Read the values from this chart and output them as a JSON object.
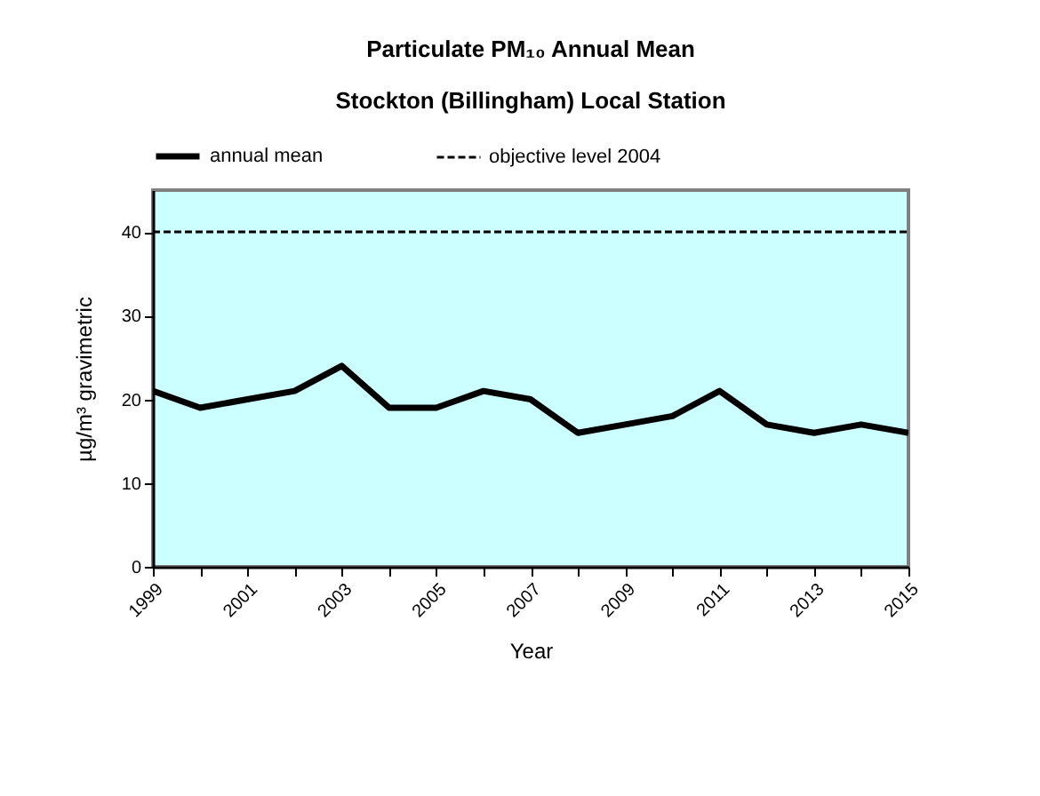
{
  "chart_data": {
    "type": "line",
    "title": "Particulate PM₁₀ Annual Mean",
    "subtitle": "Stockton (Billingham) Local Station",
    "xlabel": "Year",
    "ylabel": "µg/m³ gravimetric",
    "x": [
      1999,
      2000,
      2001,
      2002,
      2003,
      2004,
      2005,
      2006,
      2007,
      2008,
      2009,
      2010,
      2011,
      2012,
      2013,
      2014,
      2015
    ],
    "series": [
      {
        "name": "annual mean",
        "color": "#000000",
        "line_style": "solid",
        "values": [
          21,
          19,
          20,
          21,
          24,
          19,
          19,
          21,
          20,
          16,
          17,
          18,
          21,
          17,
          16,
          17,
          16
        ]
      },
      {
        "name": "objective level 2004",
        "color": "#000000",
        "line_style": "dashed",
        "values": [
          40,
          40,
          40,
          40,
          40,
          40,
          40,
          40,
          40,
          40,
          40,
          40,
          40,
          40,
          40,
          40,
          40
        ]
      }
    ],
    "xlim": [
      1999,
      2015
    ],
    "xticks": [
      1999,
      {
        "value": 2000,
        "label": null
      },
      2001,
      {
        "value": 2002,
        "label": null
      },
      2003,
      {
        "value": 2004,
        "label": null
      },
      2005,
      {
        "value": 2006,
        "label": null
      },
      2007,
      {
        "value": 2008,
        "label": null
      },
      2009,
      {
        "value": 2010,
        "label": null
      },
      2011,
      {
        "value": 2012,
        "label": null
      },
      2013,
      {
        "value": 2014,
        "label": null
      },
      2015
    ],
    "ylim": [
      0,
      45
    ],
    "yticks": [
      0,
      10,
      20,
      30,
      40
    ],
    "grid": false,
    "legend": "top",
    "marker": "none"
  }
}
